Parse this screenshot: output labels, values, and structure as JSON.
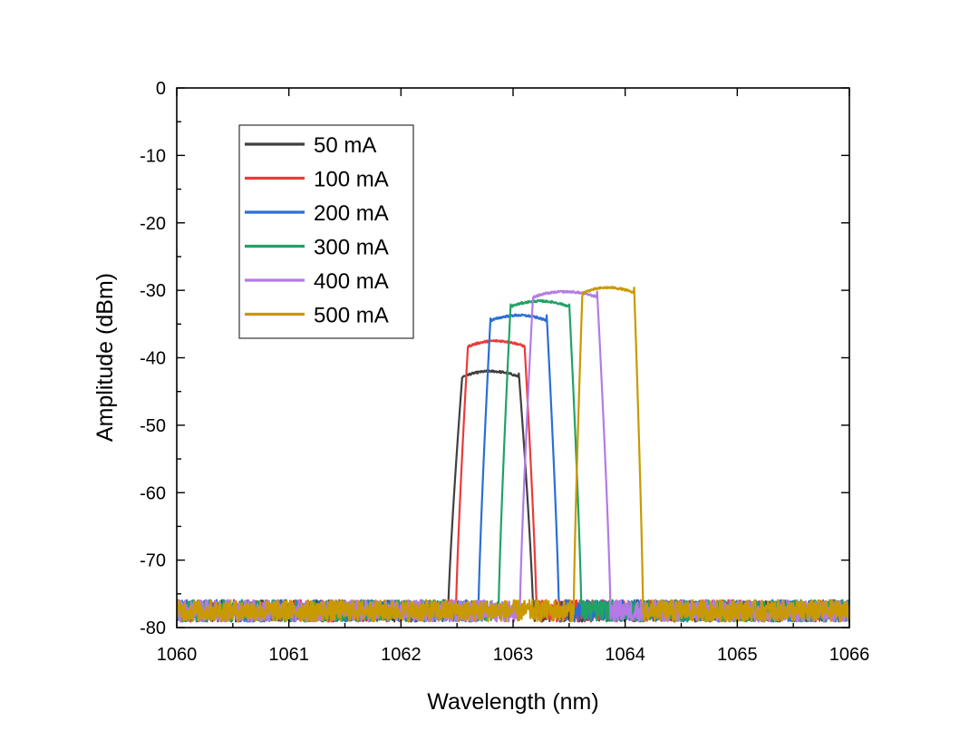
{
  "chart_data": {
    "type": "line",
    "xlabel": "Wavelength (nm)",
    "ylabel": "Amplitude (dBm)",
    "xlim": [
      1060,
      1066
    ],
    "ylim": [
      -80,
      0
    ],
    "xticks": [
      1060,
      1061,
      1062,
      1063,
      1064,
      1065,
      1066
    ],
    "yticks": [
      0,
      -10,
      -20,
      -30,
      -40,
      -50,
      -60,
      -70,
      -80
    ],
    "noise_floor": -78,
    "legend_position": "top-left",
    "series": [
      {
        "name": "50 mA",
        "color": "#404040",
        "peak": -42,
        "left": 1062.55,
        "right": 1063.05,
        "rise": 0.13
      },
      {
        "name": "100 mA",
        "color": "#ec3a3a",
        "peak": -37.5,
        "left": 1062.6,
        "right": 1063.1,
        "rise": 0.11
      },
      {
        "name": "200 mA",
        "color": "#2a6fd6",
        "peak": -33.7,
        "left": 1062.8,
        "right": 1063.3,
        "rise": 0.11
      },
      {
        "name": "300 mA",
        "color": "#21a265",
        "peak": -31.6,
        "left": 1062.98,
        "right": 1063.5,
        "rise": 0.11
      },
      {
        "name": "400 mA",
        "color": "#b57ae6",
        "peak": -30.2,
        "left": 1063.18,
        "right": 1063.75,
        "rise": 0.12
      },
      {
        "name": "500 mA",
        "color": "#c89a00",
        "peak": -29.6,
        "left": 1063.62,
        "right": 1064.08,
        "rise": 0.08
      }
    ]
  }
}
